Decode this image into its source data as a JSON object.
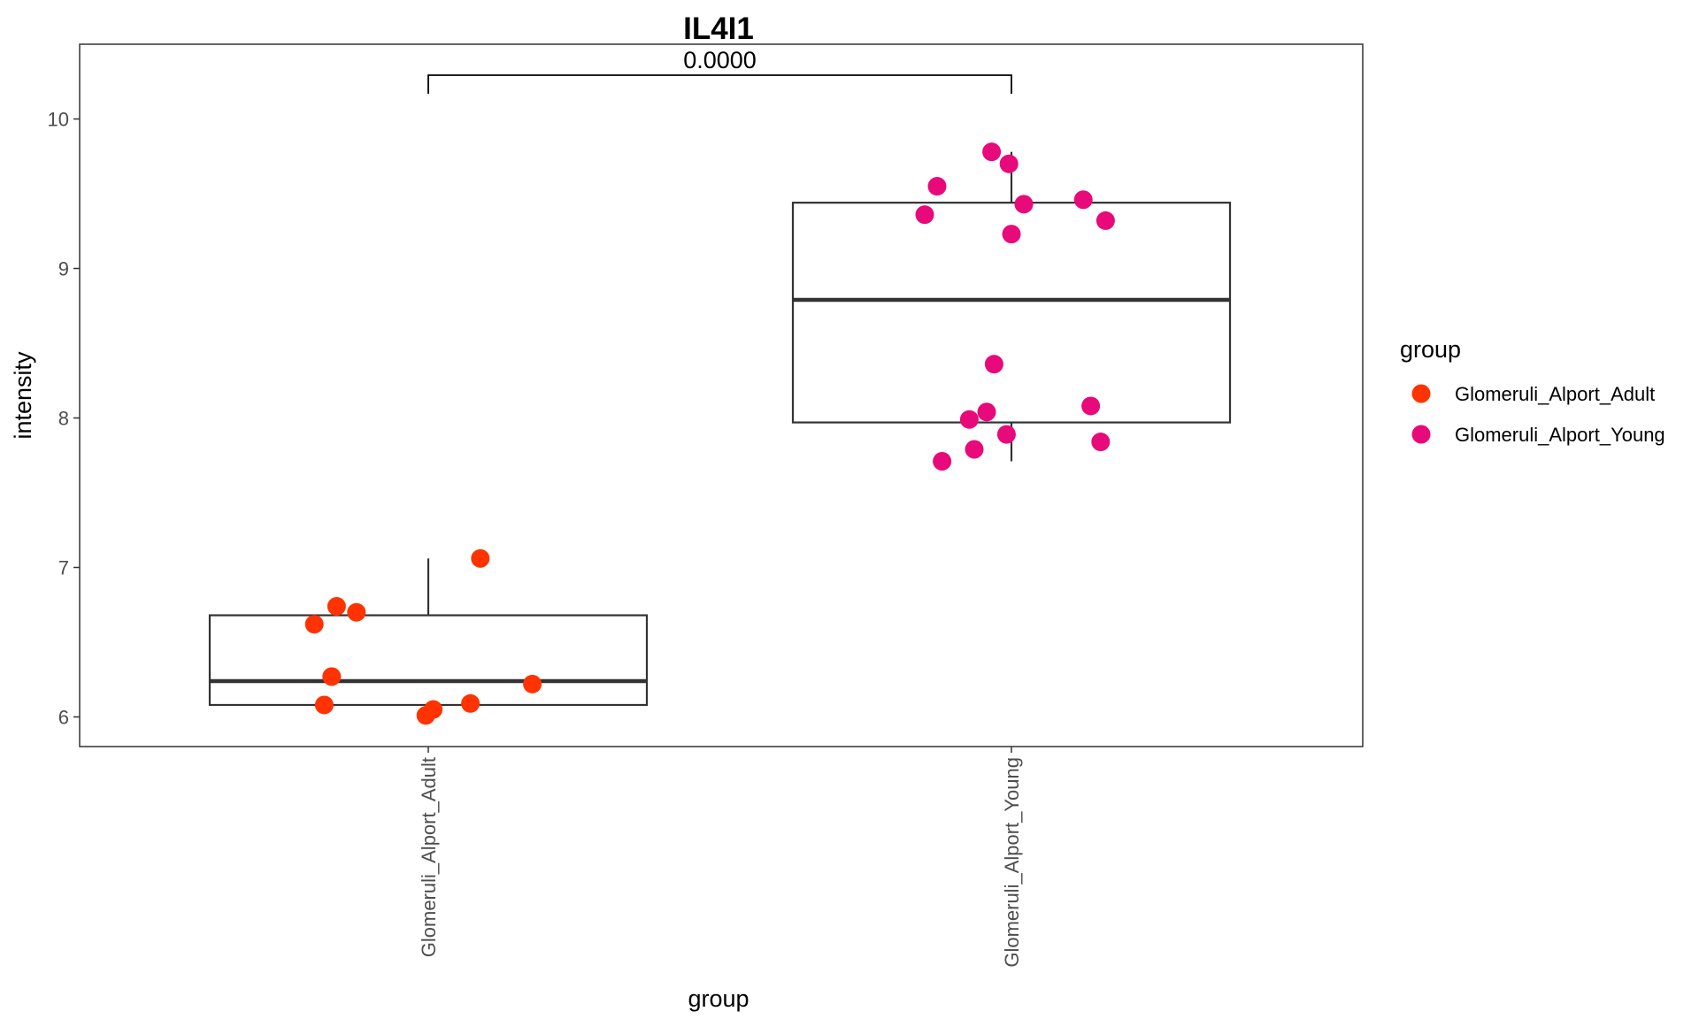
{
  "chart_data": {
    "type": "boxplot",
    "title": "IL4I1",
    "xlabel": "group",
    "ylabel": "intensity",
    "ylim": [
      5.8,
      10.5
    ],
    "yticks": [
      6,
      7,
      8,
      9,
      10
    ],
    "categories": [
      "Glomeruli_Alport_Adult",
      "Glomeruli_Alport_Young"
    ],
    "comparison": {
      "groups": [
        "Glomeruli_Alport_Adult",
        "Glomeruli_Alport_Young"
      ],
      "label": "0.0000"
    },
    "legend": {
      "title": "group",
      "position": "right"
    },
    "grid": false,
    "series": [
      {
        "name": "Glomeruli_Alport_Adult",
        "color": "#ff3300",
        "box": {
          "min": 6.0,
          "q1": 6.08,
          "median": 6.24,
          "q3": 6.68,
          "max": 7.06
        },
        "points": [
          {
            "jitter": -0.46,
            "y": 6.62
          },
          {
            "jitter": -0.37,
            "y": 6.74
          },
          {
            "jitter": -0.29,
            "y": 6.7
          },
          {
            "jitter": -0.39,
            "y": 6.27
          },
          {
            "jitter": -0.42,
            "y": 6.08
          },
          {
            "jitter": -0.01,
            "y": 6.01
          },
          {
            "jitter": 0.02,
            "y": 6.05
          },
          {
            "jitter": 0.17,
            "y": 6.09
          },
          {
            "jitter": 0.21,
            "y": 7.06
          },
          {
            "jitter": 0.42,
            "y": 6.22
          }
        ]
      },
      {
        "name": "Glomeruli_Alport_Young",
        "color": "#e8097a",
        "box": {
          "min": 7.71,
          "q1": 7.97,
          "median": 8.79,
          "q3": 9.44,
          "max": 9.78
        },
        "points": [
          {
            "jitter": -0.35,
            "y": 9.36
          },
          {
            "jitter": -0.3,
            "y": 9.55
          },
          {
            "jitter": -0.08,
            "y": 9.78
          },
          {
            "jitter": -0.01,
            "y": 9.7
          },
          {
            "jitter": 0.05,
            "y": 9.43
          },
          {
            "jitter": 0.0,
            "y": 9.23
          },
          {
            "jitter": 0.29,
            "y": 9.46
          },
          {
            "jitter": 0.38,
            "y": 9.32
          },
          {
            "jitter": -0.07,
            "y": 8.36
          },
          {
            "jitter": -0.17,
            "y": 7.99
          },
          {
            "jitter": -0.1,
            "y": 8.04
          },
          {
            "jitter": -0.02,
            "y": 7.89
          },
          {
            "jitter": -0.15,
            "y": 7.79
          },
          {
            "jitter": -0.28,
            "y": 7.71
          },
          {
            "jitter": 0.32,
            "y": 8.08
          },
          {
            "jitter": 0.36,
            "y": 7.84
          }
        ]
      }
    ]
  }
}
